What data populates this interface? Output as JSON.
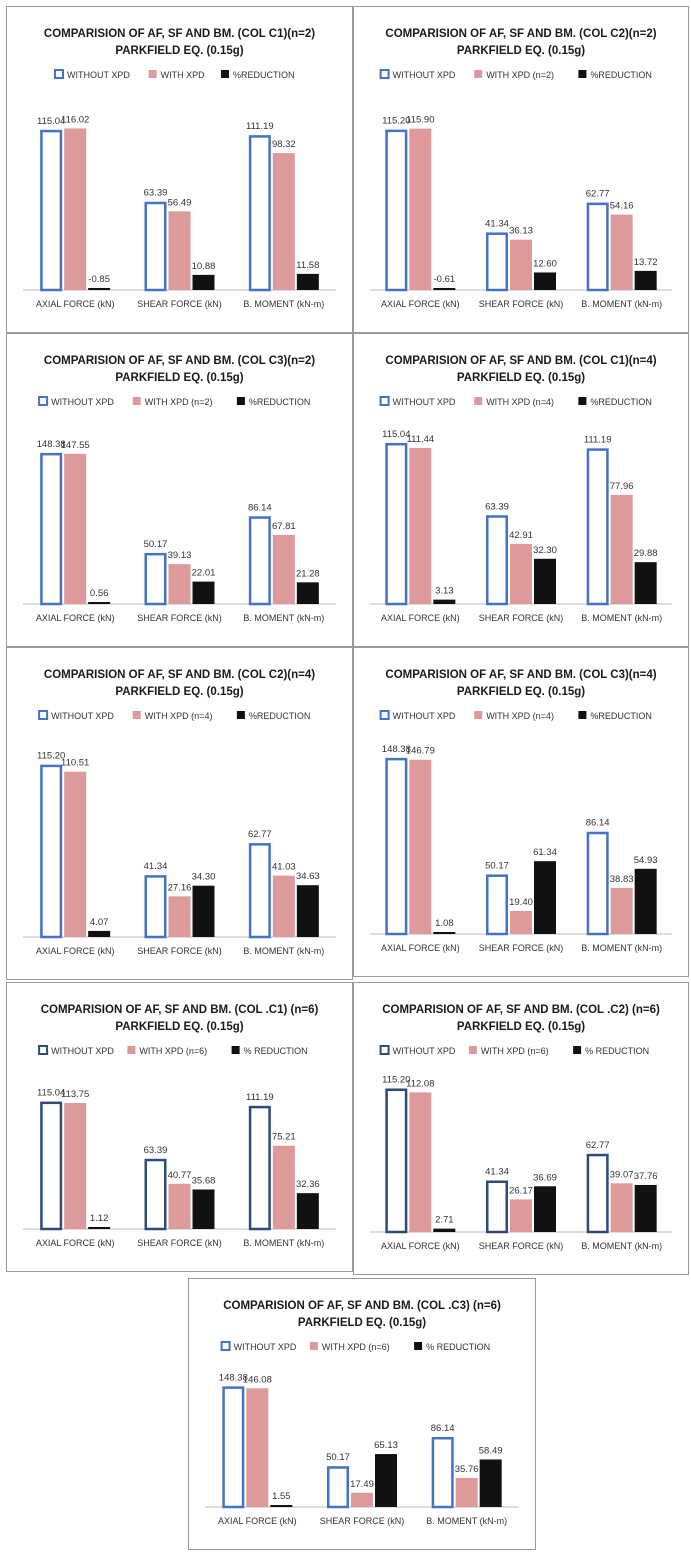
{
  "chart_data": [
    {
      "type": "bar",
      "title": "COMPARISION OF AF, SF AND BM. (COL C1)(n=2)",
      "subtitle": "PARKFIELD EQ. (0.15g)",
      "categories": [
        "AXIAL FORCE (kN)",
        "SHEAR FORCE (kN)",
        "B. MOMENT (kN-m)"
      ],
      "series": [
        {
          "name": "WITHOUT  XPD",
          "values": [
            115.04,
            63.39,
            111.19
          ]
        },
        {
          "name": "WITH XPD",
          "values": [
            116.02,
            56.49,
            98.32
          ]
        },
        {
          "name": "%REDUCTION",
          "values": [
            -0.85,
            10.88,
            11.58
          ]
        }
      ],
      "value_labels": [
        [
          "115.04",
          "63.39",
          "111.19"
        ],
        [
          "116.02",
          "56.49",
          "98.32"
        ],
        [
          "-0.85",
          "10.88",
          "11.58"
        ]
      ],
      "colors": [
        "#4472c4",
        "#dc9a9a",
        "#111111"
      ],
      "ylim": [
        0,
        130
      ],
      "legend": "top",
      "grid": false
    },
    {
      "type": "bar",
      "title": "COMPARISION OF AF, SF AND BM. (COL C2)(n=2)",
      "subtitle": "PARKFIELD EQ. (0.15g)",
      "categories": [
        "AXIAL FORCE (kN)",
        "SHEAR FORCE (kN)",
        "B. MOMENT (kN-m)"
      ],
      "series": [
        {
          "name": "WITHOUT  XPD",
          "values": [
            115.2,
            41.34,
            62.77
          ]
        },
        {
          "name": "WITH XPD (n=2)",
          "values": [
            115.9,
            36.13,
            54.16
          ]
        },
        {
          "name": "%REDUCTION",
          "values": [
            -0.61,
            12.6,
            13.72
          ]
        }
      ],
      "value_labels": [
        [
          "115.20",
          "41.34",
          "62.77"
        ],
        [
          "115.90",
          "36.13",
          "54.16"
        ],
        [
          "-0.61",
          "12.60",
          "13.72"
        ]
      ],
      "colors": [
        "#4472c4",
        "#dc9a9a",
        "#111111"
      ],
      "ylim": [
        0,
        130
      ],
      "legend": "top",
      "grid": false
    },
    {
      "type": "bar",
      "title": "COMPARISION OF AF, SF AND BM. (COL C3)(n=2)",
      "subtitle": "PARKFIELD EQ. (0.15g)",
      "categories": [
        "AXIAL FORCE (kN)",
        "SHEAR FORCE (kN)",
        "B. MOMENT (kN-m)"
      ],
      "series": [
        {
          "name": "WITHOUT  XPD",
          "values": [
            148.38,
            50.17,
            86.14
          ]
        },
        {
          "name": "WITH XPD (n=2)",
          "values": [
            147.55,
            39.13,
            67.81
          ]
        },
        {
          "name": "%REDUCTION",
          "values": [
            0.56,
            22.01,
            21.28
          ]
        }
      ],
      "value_labels": [
        [
          "148.38",
          "50.17",
          "86.14"
        ],
        [
          "147.55",
          "39.13",
          "67.81"
        ],
        [
          "0.56",
          "22.01",
          "21.28"
        ]
      ],
      "colors": [
        "#4472c4",
        "#dc9a9a",
        "#111111"
      ],
      "ylim": [
        0,
        165
      ],
      "legend": "top",
      "grid": false
    },
    {
      "type": "bar",
      "title": "COMPARISION OF AF, SF AND BM. (COL C1)(n=4)",
      "subtitle": "PARKFIELD EQ. (0.15g)",
      "categories": [
        "AXIAL FORCE (kN)",
        "SHEAR FORCE (kN)",
        "B. MOMENT (kN-m)"
      ],
      "series": [
        {
          "name": "WITHOUT  XPD",
          "values": [
            115.04,
            63.39,
            111.19
          ]
        },
        {
          "name": "WITH XPD (n=4)",
          "values": [
            111.44,
            42.91,
            77.96
          ]
        },
        {
          "name": "%REDUCTION",
          "values": [
            3.13,
            32.3,
            29.88
          ]
        }
      ],
      "value_labels": [
        [
          "115.04",
          "63.39",
          "111.19"
        ],
        [
          "111.44",
          "42.91",
          "77.96"
        ],
        [
          "3.13",
          "32.30",
          "29.88"
        ]
      ],
      "colors": [
        "#4472c4",
        "#dc9a9a",
        "#111111"
      ],
      "ylim": [
        0,
        120
      ],
      "legend": "top",
      "grid": false
    },
    {
      "type": "bar",
      "title": "COMPARISION OF AF, SF AND BM. (COL C2)(n=4)",
      "subtitle": "PARKFIELD EQ. (0.15g)",
      "categories": [
        "AXIAL FORCE (kN)",
        "SHEAR FORCE (kN)",
        "B. MOMENT (kN-m)"
      ],
      "series": [
        {
          "name": "WITHOUT  XPD",
          "values": [
            115.2,
            41.34,
            62.77
          ]
        },
        {
          "name": "WITH XPD (n=4)",
          "values": [
            110.51,
            27.16,
            41.03
          ]
        },
        {
          "name": "%REDUCTION",
          "values": [
            4.07,
            34.3,
            34.63
          ]
        }
      ],
      "value_labels": [
        [
          "115.20",
          "41.34",
          "62.77"
        ],
        [
          "110.51",
          "27.16",
          "41.03"
        ],
        [
          "4.07",
          "34.30",
          "34.63"
        ]
      ],
      "colors": [
        "#4472c4",
        "#dc9a9a",
        "#111111"
      ],
      "ylim": [
        0,
        125
      ],
      "legend": "top",
      "grid": false
    },
    {
      "type": "bar",
      "title": "COMPARISION OF AF, SF AND BM. (COL C3)(n=4)",
      "subtitle": "PARKFIELD EQ. (0.15g)",
      "categories": [
        "AXIAL FORCE (kN)",
        "SHEAR FORCE (kN)",
        "B. MOMENT (kN-m)"
      ],
      "series": [
        {
          "name": "WITHOUT  XPD",
          "values": [
            148.38,
            50.17,
            86.14
          ]
        },
        {
          "name": "WITH XPD (n=4)",
          "values": [
            146.79,
            19.4,
            38.83
          ]
        },
        {
          "name": "%REDUCTION",
          "values": [
            1.08,
            61.34,
            54.93
          ]
        }
      ],
      "value_labels": [
        [
          "148.38",
          "50.17",
          "86.14"
        ],
        [
          "146.79",
          "19.40",
          "38.83"
        ],
        [
          "1.08",
          "61.34",
          "54.93"
        ]
      ],
      "colors": [
        "#4472c4",
        "#dc9a9a",
        "#111111"
      ],
      "ylim": [
        0,
        155
      ],
      "legend": "top",
      "grid": false
    },
    {
      "type": "bar",
      "title": "COMPARISION OF AF, SF AND BM. (COL .C1) (n=6)",
      "subtitle": "PARKFIELD EQ. (0.15g)",
      "categories": [
        "AXIAL FORCE (kN)",
        "SHEAR FORCE (kN)",
        "B. MOMENT (kN-m)"
      ],
      "series": [
        {
          "name": "WITHOUT XPD",
          "values": [
            115.04,
            63.39,
            111.19
          ]
        },
        {
          "name": "WITH XPD (n=6)",
          "values": [
            113.75,
            40.77,
            75.21
          ]
        },
        {
          "name": "% REDUCTION",
          "values": [
            1.12,
            35.68,
            32.36
          ]
        }
      ],
      "value_labels": [
        [
          "115.04",
          "63.39",
          "111.19"
        ],
        [
          "113.75",
          "40.77",
          "75.21"
        ],
        [
          "1.12",
          "35.68",
          "32.36"
        ]
      ],
      "colors": [
        "#2e4a7a",
        "#dc9a9a",
        "#111111"
      ],
      "ylim": [
        0,
        130
      ],
      "legend": "top",
      "grid": false
    },
    {
      "type": "bar",
      "title": "COMPARISION OF AF, SF AND BM. (COL .C2) (n=6)",
      "subtitle": "PARKFIELD EQ. (0.15g)",
      "categories": [
        "AXIAL FORCE (kN)",
        "SHEAR FORCE (kN)",
        "B. MOMENT (kN-m)"
      ],
      "series": [
        {
          "name": "WITHOUT XPD",
          "values": [
            115.2,
            41.34,
            62.77
          ]
        },
        {
          "name": "WITH XPD (n=6)",
          "values": [
            112.08,
            26.17,
            39.07
          ]
        },
        {
          "name": "% REDUCTION",
          "values": [
            2.71,
            36.69,
            37.76
          ]
        }
      ],
      "value_labels": [
        [
          "115.20",
          "41.34",
          "62.77"
        ],
        [
          "112.08",
          "26.17",
          "39.07"
        ],
        [
          "2.71",
          "36.69",
          "37.76"
        ]
      ],
      "colors": [
        "#2e4a7a",
        "#dc9a9a",
        "#111111"
      ],
      "ylim": [
        0,
        118
      ],
      "legend": "top",
      "grid": false
    },
    {
      "type": "bar",
      "title": "COMPARISION OF AF, SF AND BM. (COL .C3) (n=6)",
      "subtitle": "PARKFIELD EQ. (0.15g)",
      "categories": [
        "AXIAL FORCE (kN)",
        "SHEAR FORCE (kN)",
        "B. MOMENT (kN-m)"
      ],
      "series": [
        {
          "name": "WITHOUT XPD",
          "values": [
            148.38,
            50.17,
            86.14
          ]
        },
        {
          "name": "WITH XPD (n=6)",
          "values": [
            146.08,
            17.49,
            35.76
          ]
        },
        {
          "name": "% REDUCTION",
          "values": [
            1.55,
            65.13,
            58.49
          ]
        }
      ],
      "value_labels": [
        [
          "148.38",
          "50.17",
          "86.14"
        ],
        [
          "146.08",
          "17.49",
          "35.76"
        ],
        [
          "1.55",
          "65.13",
          "58.49"
        ]
      ],
      "colors": [
        "#4472c4",
        "#dc9a9a",
        "#111111"
      ],
      "ylim": [
        0,
        155
      ],
      "legend": "top",
      "grid": false
    }
  ]
}
